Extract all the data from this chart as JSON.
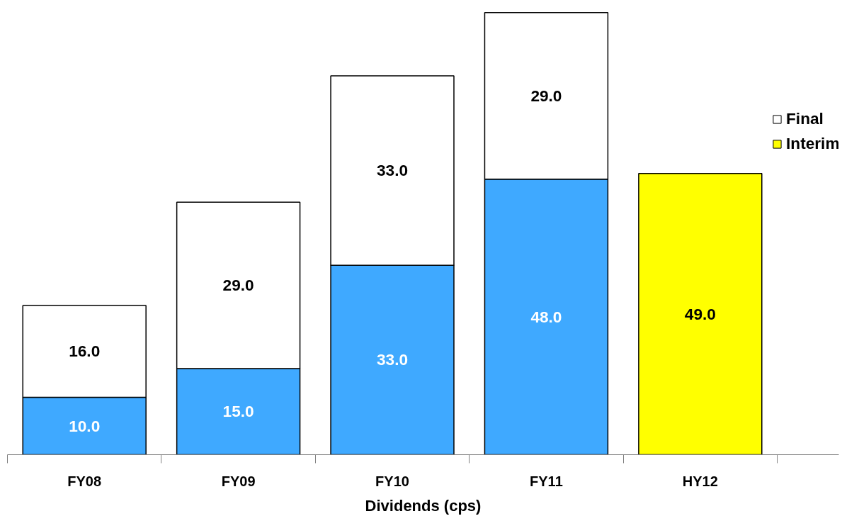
{
  "chart_data": {
    "type": "bar",
    "xlabel": "Dividends (cps)",
    "categories": [
      "FY08",
      "FY09",
      "FY10",
      "FY11",
      "HY12"
    ],
    "stacked": true,
    "legend": "right",
    "grid": false,
    "series": [
      {
        "name": "Interim",
        "color": "#ffff00",
        "colors": [
          "#3fa9ff",
          "#3fa9ff",
          "#3fa9ff",
          "#3fa9ff",
          "#ffff00"
        ],
        "values": [
          10.0,
          15.0,
          33.0,
          48.0,
          49.0
        ],
        "value_labels": [
          "10.0",
          "15.0",
          "33.0",
          "48.0",
          "49.0"
        ]
      },
      {
        "name": "Final",
        "color": "#ffffff",
        "values": [
          16.0,
          29.0,
          33.0,
          29.0,
          null
        ],
        "value_labels": [
          "16.0",
          "29.0",
          "33.0",
          "29.0",
          null
        ]
      }
    ]
  }
}
